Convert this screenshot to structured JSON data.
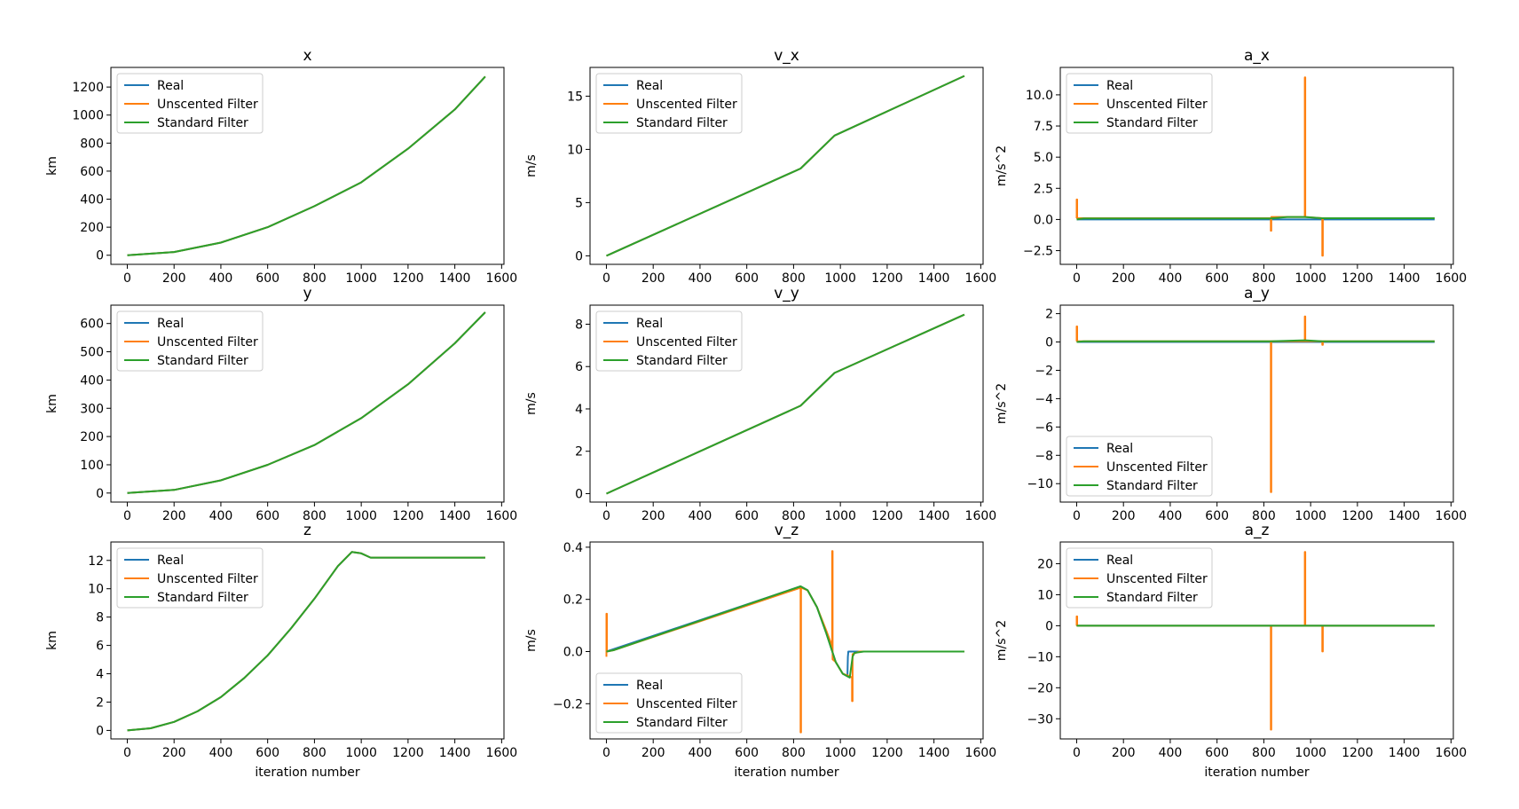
{
  "figure": {
    "x_common_label": "iteration number"
  },
  "legend_labels": [
    "Real",
    "Unscented Filter",
    "Standard Filter"
  ],
  "colors": {
    "real": "#1f77b4",
    "unscented": "#ff7f0e",
    "standard": "#2ca02c",
    "axes": "#000000"
  },
  "chart_data": [
    {
      "type": "line",
      "title": "x",
      "xlabel": "",
      "ylabel": "km",
      "xlim": [
        -70,
        1610
      ],
      "ylim": [
        -65,
        1340
      ],
      "xticks": [
        0,
        200,
        400,
        600,
        800,
        1000,
        1200,
        1400,
        1600
      ],
      "yticks": [
        0,
        200,
        400,
        600,
        800,
        1000,
        1200
      ],
      "legend": "upper-left",
      "series": [
        {
          "name": "Real",
          "x": [
            0,
            200,
            400,
            600,
            800,
            1000,
            1200,
            1400,
            1530
          ],
          "y": [
            0,
            23,
            90,
            200,
            350,
            520,
            760,
            1040,
            1275
          ]
        },
        {
          "name": "Unscented Filter",
          "x": [
            0,
            200,
            400,
            600,
            800,
            1000,
            1200,
            1400,
            1530
          ],
          "y": [
            0,
            23,
            90,
            200,
            350,
            520,
            760,
            1040,
            1275
          ]
        },
        {
          "name": "Standard Filter",
          "x": [
            0,
            200,
            400,
            600,
            800,
            1000,
            1200,
            1400,
            1530
          ],
          "y": [
            0,
            23,
            90,
            200,
            350,
            520,
            760,
            1040,
            1275
          ]
        }
      ]
    },
    {
      "type": "line",
      "title": "v_x",
      "xlabel": "",
      "ylabel": "m/s",
      "xlim": [
        -70,
        1610
      ],
      "ylim": [
        -0.8,
        17.7
      ],
      "xticks": [
        0,
        200,
        400,
        600,
        800,
        1000,
        1200,
        1400,
        1600
      ],
      "yticks": [
        0,
        5,
        10,
        15
      ],
      "legend": "upper-left",
      "series": [
        {
          "name": "Real",
          "x": [
            0,
            30,
            830,
            975,
            1530
          ],
          "y": [
            0,
            0.3,
            8.2,
            11.3,
            16.9
          ]
        },
        {
          "name": "Unscented Filter",
          "x": [
            0,
            30,
            830,
            975,
            1530
          ],
          "y": [
            0,
            0.3,
            8.2,
            11.3,
            16.9
          ]
        },
        {
          "name": "Standard Filter",
          "x": [
            0,
            30,
            830,
            975,
            1530
          ],
          "y": [
            0,
            0.3,
            8.2,
            11.3,
            16.9
          ]
        }
      ]
    },
    {
      "type": "line",
      "title": "a_x",
      "xlabel": "",
      "ylabel": "m/s^2",
      "xlim": [
        -70,
        1610
      ],
      "ylim": [
        -3.6,
        12.2
      ],
      "xticks": [
        0,
        200,
        400,
        600,
        800,
        1000,
        1200,
        1400,
        1600
      ],
      "yticks": [
        -2.5,
        0.0,
        2.5,
        5.0,
        7.5,
        10.0
      ],
      "legend": "upper-left",
      "series": [
        {
          "name": "Real",
          "x": [
            0,
            1530
          ],
          "y": [
            0.0,
            0.0
          ]
        },
        {
          "name": "Unscented Filter",
          "x": [
            0,
            0,
            2,
            2,
            830,
            830,
            832,
            832,
            975,
            975,
            977,
            977,
            1050,
            1050,
            1052,
            1052,
            1530
          ],
          "y": [
            0.1,
            1.6,
            1.6,
            0.1,
            0.1,
            -0.9,
            -0.9,
            0.2,
            0.2,
            11.4,
            11.4,
            0.2,
            0.1,
            -2.9,
            -2.9,
            0.1,
            0.1
          ]
        },
        {
          "name": "Standard Filter",
          "x": [
            0,
            30,
            830,
            900,
            975,
            1050,
            1530
          ],
          "y": [
            0.0,
            0.08,
            0.08,
            0.2,
            0.2,
            0.1,
            0.1
          ]
        }
      ]
    },
    {
      "type": "line",
      "title": "y",
      "xlabel": "",
      "ylabel": "km",
      "xlim": [
        -70,
        1610
      ],
      "ylim": [
        -32,
        665
      ],
      "xticks": [
        0,
        200,
        400,
        600,
        800,
        1000,
        1200,
        1400,
        1600
      ],
      "yticks": [
        0,
        100,
        200,
        300,
        400,
        500,
        600
      ],
      "legend": "upper-left",
      "series": [
        {
          "name": "Real",
          "x": [
            0,
            200,
            400,
            600,
            800,
            1000,
            1200,
            1400,
            1530
          ],
          "y": [
            0,
            11,
            45,
            100,
            170,
            265,
            385,
            530,
            640
          ]
        },
        {
          "name": "Unscented Filter",
          "x": [
            0,
            200,
            400,
            600,
            800,
            1000,
            1200,
            1400,
            1530
          ],
          "y": [
            0,
            11,
            45,
            100,
            170,
            265,
            385,
            530,
            640
          ]
        },
        {
          "name": "Standard Filter",
          "x": [
            0,
            200,
            400,
            600,
            800,
            1000,
            1200,
            1400,
            1530
          ],
          "y": [
            0,
            11,
            45,
            100,
            170,
            265,
            385,
            530,
            640
          ]
        }
      ]
    },
    {
      "type": "line",
      "title": "v_y",
      "xlabel": "",
      "ylabel": "m/s",
      "xlim": [
        -70,
        1610
      ],
      "ylim": [
        -0.4,
        8.9
      ],
      "xticks": [
        0,
        200,
        400,
        600,
        800,
        1000,
        1200,
        1400,
        1600
      ],
      "yticks": [
        0,
        2,
        4,
        6,
        8
      ],
      "legend": "upper-left",
      "series": [
        {
          "name": "Real",
          "x": [
            0,
            30,
            830,
            975,
            1530
          ],
          "y": [
            0,
            0.15,
            4.15,
            5.7,
            8.45
          ]
        },
        {
          "name": "Unscented Filter",
          "x": [
            0,
            30,
            830,
            975,
            1530
          ],
          "y": [
            0,
            0.15,
            4.15,
            5.7,
            8.45
          ]
        },
        {
          "name": "Standard Filter",
          "x": [
            0,
            30,
            830,
            975,
            1530
          ],
          "y": [
            0,
            0.15,
            4.15,
            5.7,
            8.45
          ]
        }
      ]
    },
    {
      "type": "line",
      "title": "a_y",
      "xlabel": "",
      "ylabel": "m/s^2",
      "xlim": [
        -70,
        1610
      ],
      "ylim": [
        -11.3,
        2.6
      ],
      "xticks": [
        0,
        200,
        400,
        600,
        800,
        1000,
        1200,
        1400,
        1600
      ],
      "yticks": [
        -10,
        -8,
        -6,
        -4,
        -2,
        0,
        2
      ],
      "legend": "lower-left",
      "series": [
        {
          "name": "Real",
          "x": [
            0,
            1530
          ],
          "y": [
            0.0,
            0.0
          ]
        },
        {
          "name": "Unscented Filter",
          "x": [
            0,
            0,
            2,
            2,
            830,
            830,
            832,
            832,
            975,
            975,
            977,
            977,
            1050,
            1050,
            1052,
            1052,
            1530
          ],
          "y": [
            0.05,
            1.1,
            1.1,
            0.05,
            0.05,
            -10.6,
            -10.6,
            0.05,
            0.05,
            1.8,
            1.8,
            0.05,
            0.05,
            -0.2,
            -0.2,
            0.05,
            0.05
          ]
        },
        {
          "name": "Standard Filter",
          "x": [
            0,
            30,
            830,
            975,
            1050,
            1530
          ],
          "y": [
            0.0,
            0.05,
            0.05,
            0.12,
            0.05,
            0.05
          ]
        }
      ]
    },
    {
      "type": "line",
      "title": "z",
      "xlabel": "iteration number",
      "ylabel": "km",
      "xlim": [
        -70,
        1610
      ],
      "ylim": [
        -0.6,
        13.3
      ],
      "xticks": [
        0,
        200,
        400,
        600,
        800,
        1000,
        1200,
        1400,
        1600
      ],
      "yticks": [
        0,
        2,
        4,
        6,
        8,
        10,
        12
      ],
      "legend": "upper-left",
      "series": [
        {
          "name": "Real",
          "x": [
            0,
            100,
            200,
            300,
            400,
            500,
            600,
            700,
            800,
            900,
            960,
            1000,
            1040,
            1530
          ],
          "y": [
            0,
            0.15,
            0.6,
            1.35,
            2.35,
            3.7,
            5.3,
            7.2,
            9.3,
            11.6,
            12.6,
            12.5,
            12.2,
            12.2
          ]
        },
        {
          "name": "Unscented Filter",
          "x": [
            0,
            100,
            200,
            300,
            400,
            500,
            600,
            700,
            800,
            900,
            960,
            1000,
            1040,
            1530
          ],
          "y": [
            0,
            0.15,
            0.6,
            1.35,
            2.35,
            3.7,
            5.3,
            7.2,
            9.3,
            11.6,
            12.6,
            12.5,
            12.2,
            12.2
          ]
        },
        {
          "name": "Standard Filter",
          "x": [
            0,
            100,
            200,
            300,
            400,
            500,
            600,
            700,
            800,
            900,
            960,
            1000,
            1040,
            1530
          ],
          "y": [
            0,
            0.15,
            0.6,
            1.35,
            2.35,
            3.7,
            5.3,
            7.2,
            9.3,
            11.6,
            12.6,
            12.5,
            12.2,
            12.2
          ]
        }
      ]
    },
    {
      "type": "line",
      "title": "v_z",
      "xlabel": "iteration number",
      "ylabel": "m/s",
      "xlim": [
        -70,
        1610
      ],
      "ylim": [
        -0.335,
        0.42
      ],
      "xticks": [
        0,
        200,
        400,
        600,
        800,
        1000,
        1200,
        1400,
        1600
      ],
      "yticks": [
        -0.2,
        0.0,
        0.2,
        0.4
      ],
      "legend": "lower-left",
      "series": [
        {
          "name": "Real",
          "x": [
            0,
            830,
            860,
            900,
            940,
            980,
            1010,
            1030,
            1032,
            1034,
            1060,
            1100,
            1530
          ],
          "y": [
            0,
            0.25,
            0.235,
            0.17,
            0.07,
            -0.04,
            -0.085,
            -0.095,
            -0.02,
            0.0,
            0.0,
            0.0,
            0.0
          ]
        },
        {
          "name": "Unscented Filter",
          "x": [
            0,
            0,
            2,
            2,
            30,
            830,
            830,
            832,
            832,
            860,
            900,
            940,
            965,
            965,
            967,
            967,
            980,
            1010,
            1040,
            1050,
            1050,
            1052,
            1052,
            1080,
            1530
          ],
          "y": [
            -0.02,
            0.145,
            0.145,
            0.0,
            0.005,
            0.245,
            -0.31,
            -0.31,
            0.245,
            0.235,
            0.17,
            0.08,
            0.02,
            0.385,
            0.385,
            -0.03,
            -0.04,
            -0.085,
            -0.095,
            -0.1,
            -0.19,
            -0.19,
            -0.01,
            0.0,
            0.0
          ]
        },
        {
          "name": "Standard Filter",
          "x": [
            0,
            30,
            830,
            860,
            900,
            940,
            980,
            1010,
            1040,
            1052,
            1060,
            1100,
            1530
          ],
          "y": [
            0,
            0.005,
            0.25,
            0.235,
            0.17,
            0.07,
            -0.04,
            -0.085,
            -0.1,
            -0.02,
            -0.005,
            0.0,
            0.0
          ]
        }
      ]
    },
    {
      "type": "line",
      "title": "a_z",
      "xlabel": "iteration number",
      "ylabel": "m/s^2",
      "xlim": [
        -70,
        1610
      ],
      "ylim": [
        -36.5,
        27
      ],
      "xticks": [
        0,
        200,
        400,
        600,
        800,
        1000,
        1200,
        1400,
        1600
      ],
      "yticks": [
        -30,
        -20,
        -10,
        0,
        10,
        20
      ],
      "legend": "upper-left",
      "series": [
        {
          "name": "Real",
          "x": [
            0,
            1530
          ],
          "y": [
            0.0,
            0.0
          ]
        },
        {
          "name": "Unscented Filter",
          "x": [
            0,
            0,
            2,
            2,
            830,
            830,
            832,
            832,
            975,
            975,
            977,
            977,
            1050,
            1050,
            1052,
            1052,
            1530
          ],
          "y": [
            0.0,
            3.0,
            3.0,
            0.0,
            0.0,
            -33.5,
            -33.5,
            0.0,
            0.0,
            23.8,
            23.8,
            0.0,
            0.0,
            -8.3,
            -8.3,
            0.0,
            0.0
          ]
        },
        {
          "name": "Standard Filter",
          "x": [
            0,
            1530
          ],
          "y": [
            0.0,
            0.0
          ]
        }
      ]
    }
  ]
}
